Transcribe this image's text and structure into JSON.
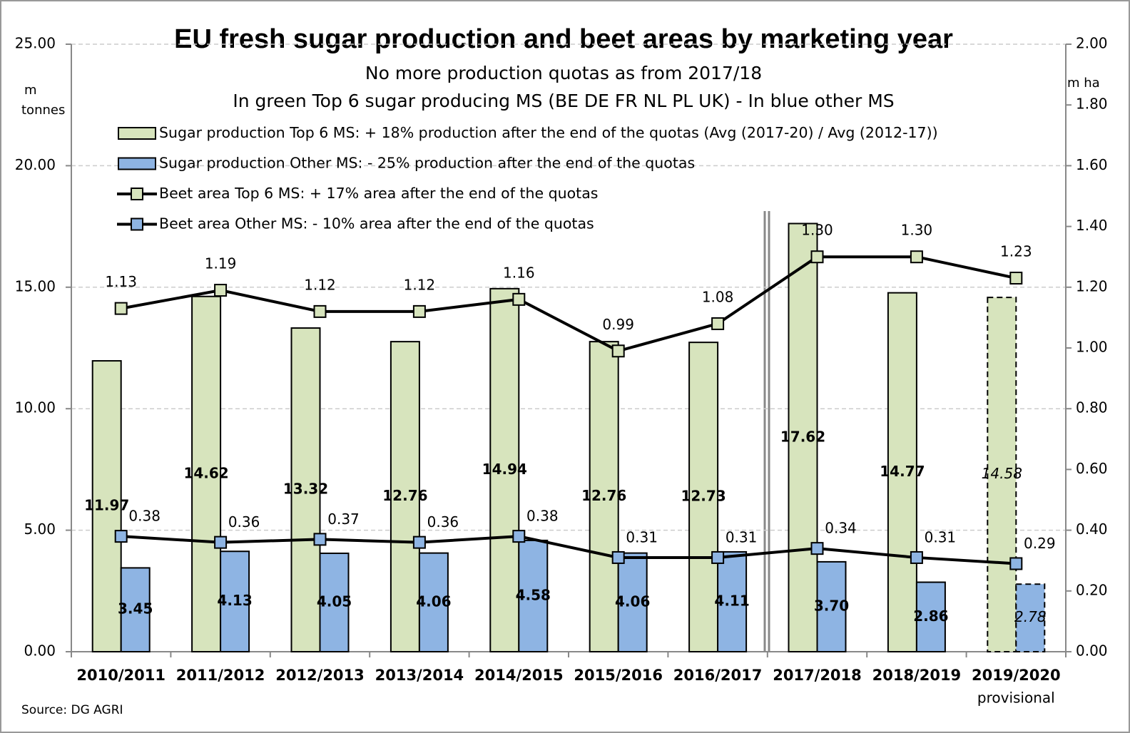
{
  "chart_data": {
    "type": "bar_line",
    "title": "EU fresh sugar production and beet areas by marketing year",
    "subtitle": [
      "No more production quotas as from 2017/18",
      "In green Top 6 sugar producing MS (BE DE FR NL PL UK)  - In blue other MS"
    ],
    "y_label": "m tonnes",
    "y2_label": "m ha",
    "source": "Source: DG AGRI",
    "categories": [
      "2010/2011",
      "2011/2012",
      "2012/2013",
      "2013/2014",
      "2014/2015",
      "2015/2016",
      "2016/2017",
      "2017/2018",
      "2018/2019",
      "2019/2020"
    ],
    "category_notes": [
      null,
      null,
      null,
      null,
      null,
      null,
      null,
      null,
      null,
      "provisional"
    ],
    "ylim": [
      0,
      25
    ],
    "yticks": [
      {
        "value": 0,
        "label": "0.00"
      },
      {
        "value": 5,
        "label": "5.00"
      },
      {
        "value": 10,
        "label": "10.00"
      },
      {
        "value": 15,
        "label": "15.00"
      },
      {
        "value": 20,
        "label": "20.00"
      },
      {
        "value": 25,
        "label": "25.00"
      }
    ],
    "y2lim": [
      0,
      2
    ],
    "y2ticks": [
      {
        "value": 0,
        "label": "0.00"
      },
      {
        "value": 0.2,
        "label": "0.20"
      },
      {
        "value": 0.4,
        "label": "0.40"
      },
      {
        "value": 0.6,
        "label": "0.60"
      },
      {
        "value": 0.8,
        "label": "0.80"
      },
      {
        "value": 1,
        "label": "1.00"
      },
      {
        "value": 1.2,
        "label": "1.20"
      },
      {
        "value": 1.4,
        "label": "1.40"
      },
      {
        "value": 1.6,
        "label": "1.60"
      },
      {
        "value": 1.8,
        "label": "1.80"
      },
      {
        "value": 2,
        "label": "2.00"
      }
    ],
    "grid": true,
    "series": [
      {
        "name": "Sugar production Top 6 MS: + 18% production after the end of the quotas  (Avg (2017-20) / Avg (2012-17))",
        "type": "bar",
        "color": "#d7e4bd",
        "values": [
          11.97,
          14.62,
          13.32,
          12.76,
          14.94,
          12.76,
          12.73,
          17.62,
          14.77,
          14.58
        ],
        "value_labels": [
          "11.97",
          "14.62",
          "13.32",
          "12.76",
          "14.94",
          "12.76",
          "12.73",
          "17.62",
          "14.77",
          "14.58"
        ]
      },
      {
        "name": "Sugar production Other MS: - 25% production after the end of the quotas",
        "type": "bar",
        "color": "#8eb4e3",
        "values": [
          3.45,
          4.13,
          4.05,
          4.06,
          4.58,
          4.06,
          4.11,
          3.7,
          2.86,
          2.78
        ],
        "value_labels": [
          "3.45",
          "4.13",
          "4.05",
          "4.06",
          "4.58",
          "4.06",
          "4.11",
          "3.70",
          "2.86",
          "2.78"
        ]
      },
      {
        "name": "Beet area Top 6 MS: + 17% area after the end of the quotas",
        "type": "line",
        "axis": "y2",
        "color": "#d7e4bd",
        "values": [
          1.13,
          1.19,
          1.12,
          1.12,
          1.16,
          0.99,
          1.08,
          1.3,
          1.3,
          1.23
        ],
        "value_labels": [
          "1.13",
          "1.19",
          "1.12",
          "1.12",
          "1.16",
          "0.99",
          "1.08",
          "1.30",
          "1.30",
          "1.23"
        ]
      },
      {
        "name": "Beet area Other MS: - 10% area after the end of the quotas",
        "type": "line",
        "axis": "y2",
        "color": "#8eb4e3",
        "values": [
          0.38,
          0.36,
          0.37,
          0.36,
          0.38,
          0.31,
          0.31,
          0.34,
          0.31,
          0.29
        ],
        "value_labels": [
          "0.38",
          "0.36",
          "0.37",
          "0.36",
          "0.38",
          "0.31",
          "0.31",
          "0.34",
          "0.31",
          "0.29"
        ]
      }
    ]
  }
}
